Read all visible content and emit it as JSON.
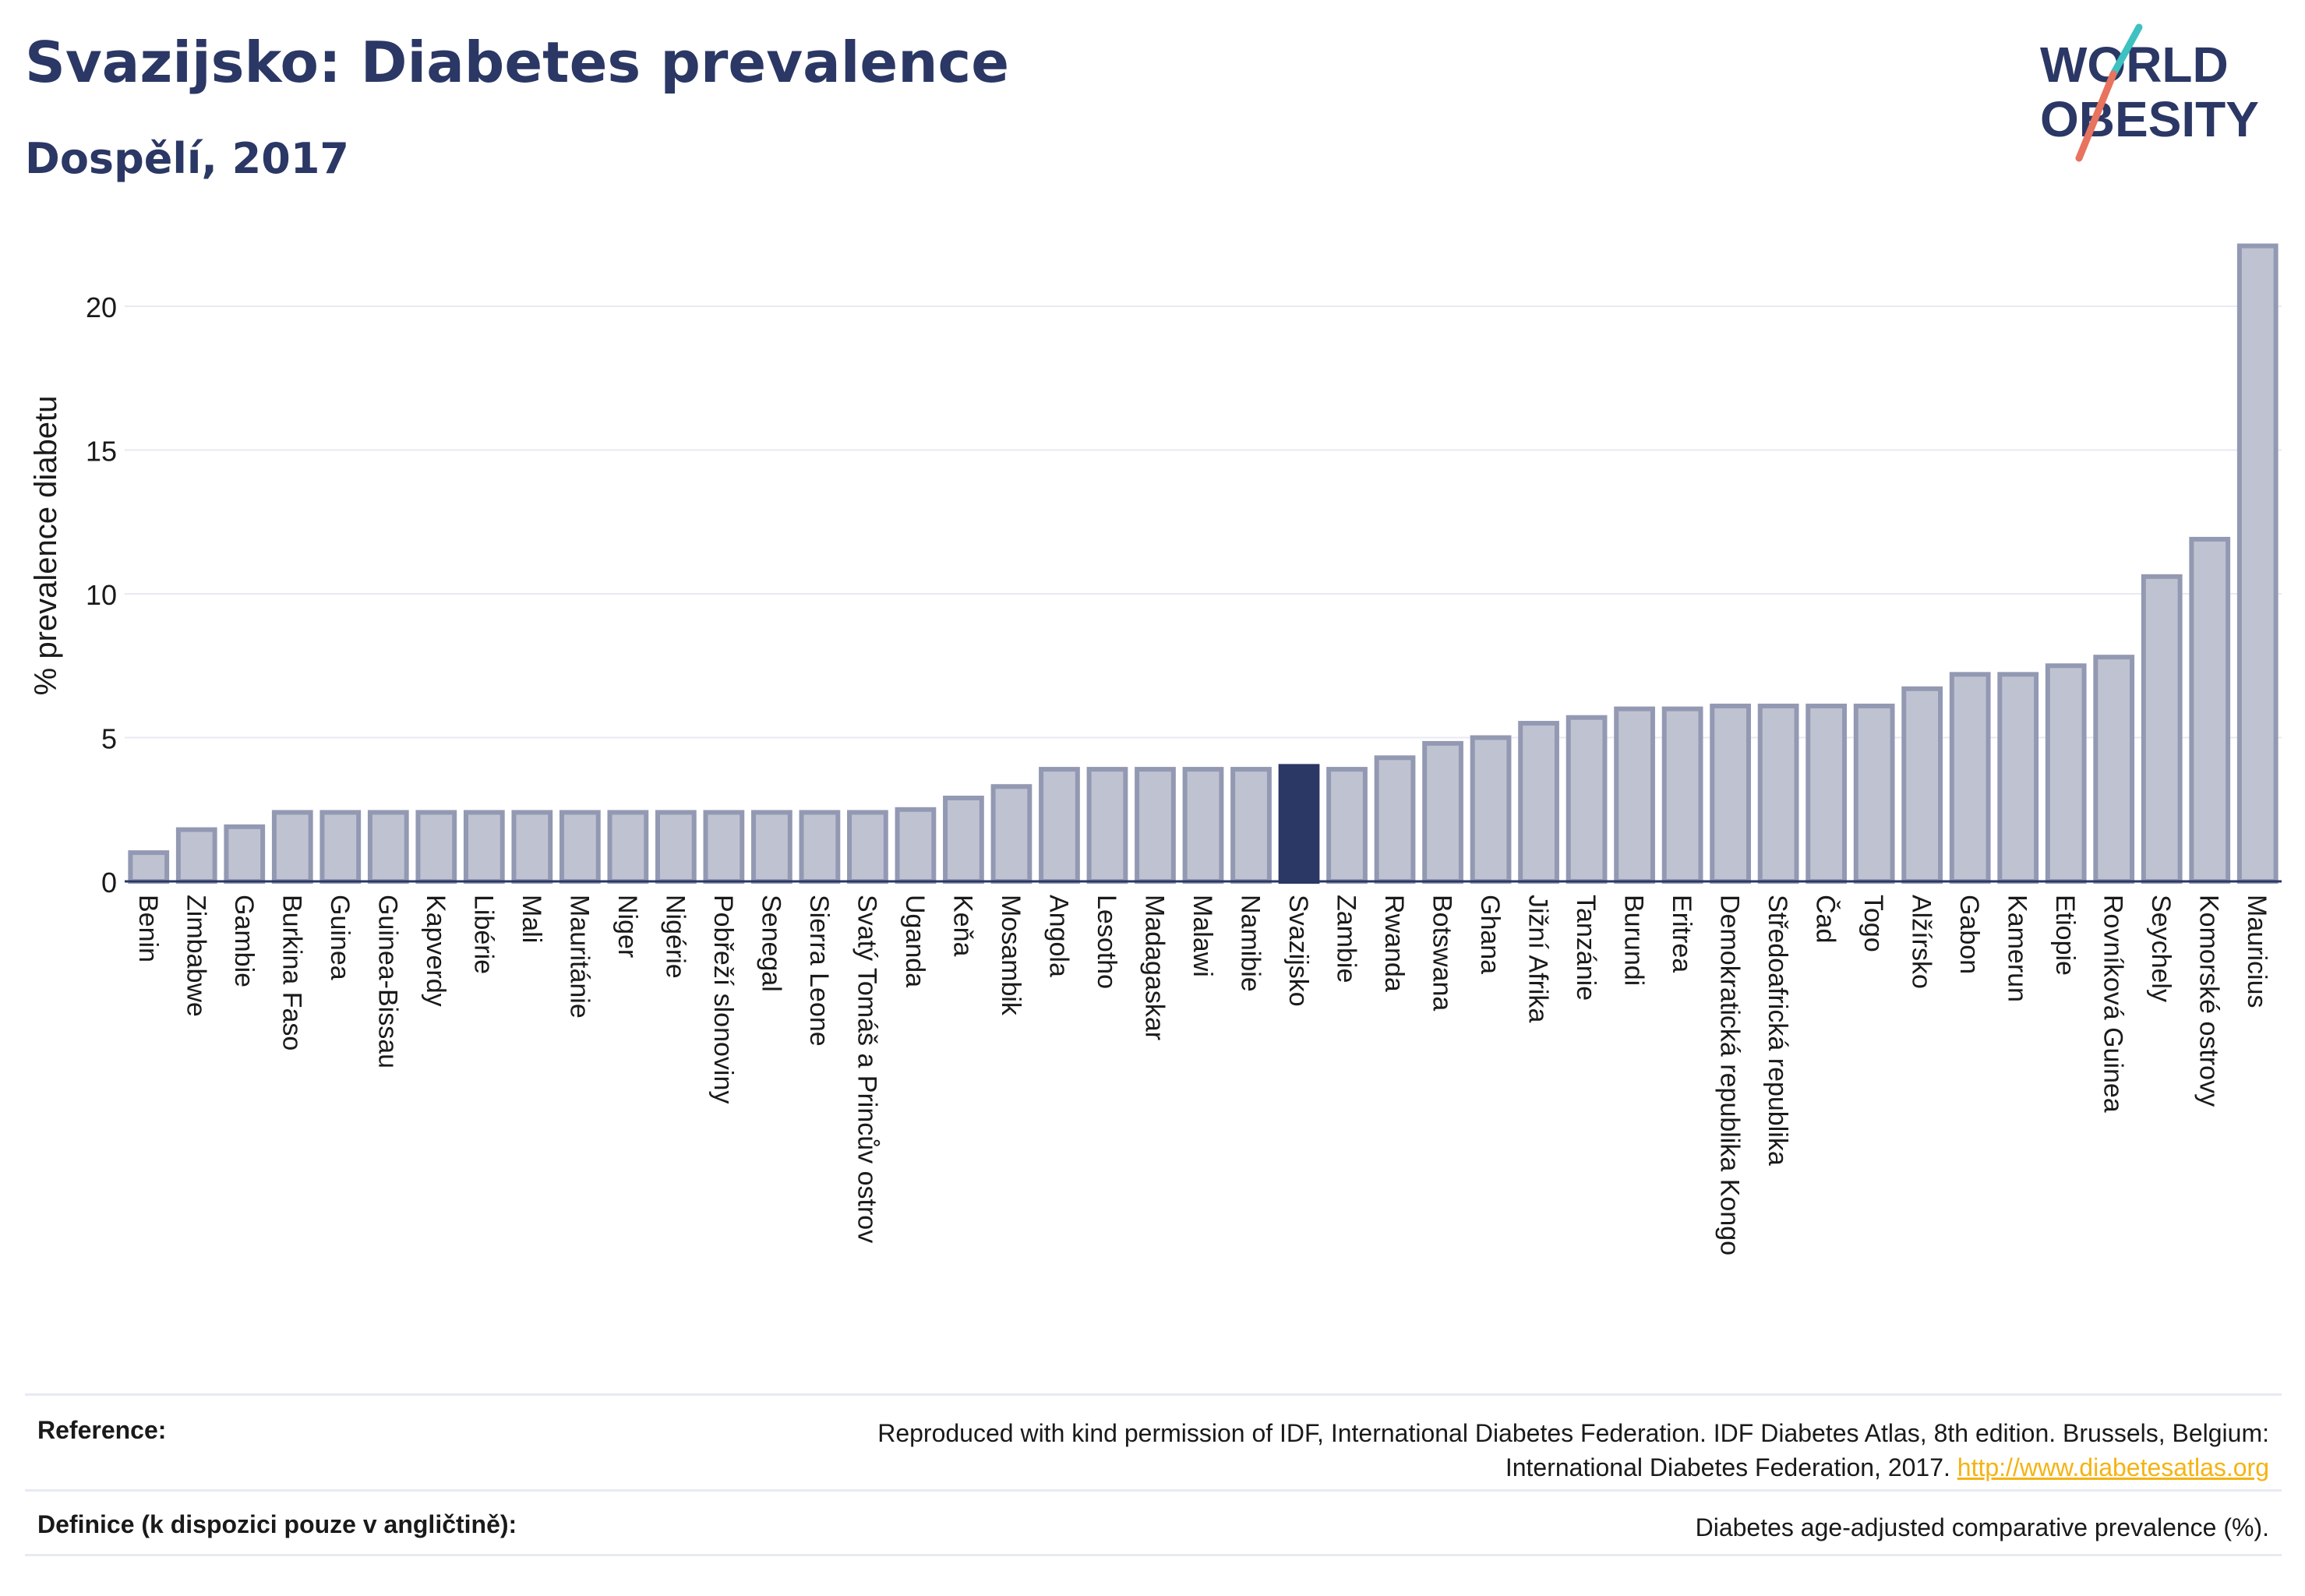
{
  "header": {
    "title": "Svazijsko: Diabetes prevalence",
    "subtitle": "Dospělí, 2017"
  },
  "logo": {
    "line1": "WORLD",
    "line2": "OBESITY",
    "colors": {
      "navy": "#2b3764",
      "teal": "#3ec1c1",
      "coral": "#e8735e"
    }
  },
  "chart_data": {
    "type": "bar",
    "ylabel": "% prevalence diabetu",
    "xlabel": "",
    "ylim": [
      0,
      23
    ],
    "yticks": [
      0,
      5,
      10,
      15,
      20
    ],
    "grid": true,
    "legend": "none",
    "colors": {
      "bar": "#bfc3d1",
      "bar_edge": "#9399b2",
      "highlight": "#2b3764",
      "grid": "#e8eaf2",
      "axis": "#2b3764"
    },
    "highlight": "Svazijsko",
    "categories": [
      "Benin",
      "Zimbabwe",
      "Gambie",
      "Burkina Faso",
      "Guinea",
      "Guinea-Bissau",
      "Kapverdy",
      "Libérie",
      "Mali",
      "Mauritánie",
      "Niger",
      "Nigérie",
      "Pobřeží slonoviny",
      "Senegal",
      "Sierra Leone",
      "Svatý Tomáš a Princův ostrov",
      "Uganda",
      "Keňa",
      "Mosambik",
      "Angola",
      "Lesotho",
      "Madagaskar",
      "Malawi",
      "Namibie",
      "Svazijsko",
      "Zambie",
      "Rwanda",
      "Botswana",
      "Ghana",
      "Jižní Afrika",
      "Tanzánie",
      "Burundi",
      "Eritrea",
      "Demokratická republika Kongo",
      "Středoafrická republika",
      "Čad",
      "Togo",
      "Alžírsko",
      "Gabon",
      "Kamerun",
      "Etiopie",
      "Rovníková Guinea",
      "Seychely",
      "Komorské ostrovy",
      "Mauricius"
    ],
    "values": [
      1.0,
      1.8,
      1.9,
      2.4,
      2.4,
      2.4,
      2.4,
      2.4,
      2.4,
      2.4,
      2.4,
      2.4,
      2.4,
      2.4,
      2.4,
      2.4,
      2.5,
      2.9,
      3.3,
      3.9,
      3.9,
      3.9,
      3.9,
      3.9,
      4.0,
      3.9,
      4.3,
      4.8,
      5.0,
      5.5,
      5.7,
      6.0,
      6.0,
      6.1,
      6.1,
      6.1,
      6.1,
      6.7,
      7.2,
      7.2,
      7.5,
      7.8,
      10.6,
      11.9,
      22.1
    ]
  },
  "footer": {
    "reference_label": "Reference:",
    "reference_text_1": "Reproduced with kind permission of IDF, International Diabetes Federation. IDF Diabetes Atlas, 8th edition. Brussels, Belgium:",
    "reference_text_2": "International Diabetes Federation, 2017.",
    "reference_link": "http://www.diabetesatlas.org",
    "definition_label": "Definice (k dispozici pouze v angličtině):",
    "definition_text": "Diabetes age-adjusted comparative prevalence (%)."
  }
}
